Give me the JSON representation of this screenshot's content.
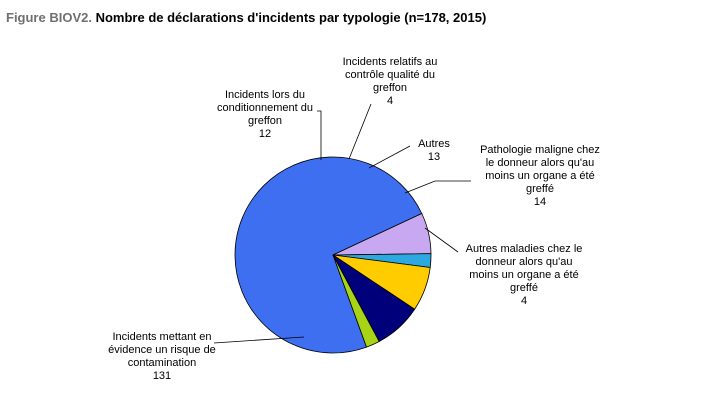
{
  "figure": {
    "label": "Figure BIOV2.",
    "title": "Nombre de déclarations d'incidents par typologie (n=178, 2015)"
  },
  "chart_data": {
    "type": "pie",
    "title": "Nombre de déclarations d'incidents par typologie (n=178, 2015)",
    "total": 178,
    "slices": [
      {
        "label_lines": [
          "Incidents mettant en",
          "évidence un risque de",
          "contamination"
        ],
        "value": 131,
        "color": "#3d6ff0"
      },
      {
        "label_lines": [
          "Incidents lors du",
          "conditionnement du",
          "greffon"
        ],
        "value": 12,
        "color": "#c8a8f0"
      },
      {
        "label_lines": [
          "Incidents relatifs au",
          "contrôle qualité du",
          "greffon"
        ],
        "value": 4,
        "color": "#2ea8e0"
      },
      {
        "label_lines": [
          "Autres"
        ],
        "value": 13,
        "color": "#ffcc00"
      },
      {
        "label_lines": [
          "Pathologie maligne chez",
          "le donneur alors qu'au",
          "moins un organe a été",
          "greffé"
        ],
        "value": 14,
        "color": "#00007a"
      },
      {
        "label_lines": [
          "Autres maladies chez le",
          "donneur alors qu'au",
          "moins un organe a été",
          "greffé"
        ],
        "value": 4,
        "color": "#a8d418"
      }
    ]
  }
}
